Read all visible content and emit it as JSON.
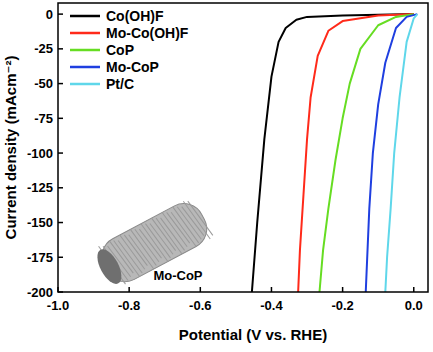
{
  "chart_data": {
    "type": "line",
    "x_label": "Potential (V vs. RHE)",
    "y_label": "Current density (mAcm⁻²)",
    "annotation": "Mo-CoP",
    "xlim": [
      -1.0,
      0.04
    ],
    "ylim": [
      -200,
      8
    ],
    "xticks": [
      {
        "value": -1.0,
        "label": "-1.0"
      },
      {
        "value": -0.8,
        "label": "-0.8"
      },
      {
        "value": -0.6,
        "label": "-0.6"
      },
      {
        "value": -0.4,
        "label": "-0.4"
      },
      {
        "value": -0.2,
        "label": "-0.2"
      },
      {
        "value": 0.0,
        "label": "0.0"
      }
    ],
    "yticks": [
      0,
      -25,
      -50,
      -75,
      -100,
      -125,
      -150,
      -175,
      -200
    ],
    "grid": false,
    "legend": "upper left",
    "series": [
      {
        "name": "Co(OH)F",
        "color": "#000000",
        "x": [
          0.0,
          -0.2,
          -0.3,
          -0.33,
          -0.36,
          -0.38,
          -0.4,
          -0.42,
          -0.44,
          -0.455
        ],
        "values": [
          0,
          -1,
          -2,
          -4,
          -10,
          -20,
          -45,
          -90,
          -150,
          -200
        ]
      },
      {
        "name": "Mo-Co(OH)F",
        "color": "#ff2a1a",
        "x": [
          0.0,
          -0.1,
          -0.2,
          -0.24,
          -0.27,
          -0.29,
          -0.3,
          -0.31,
          -0.32,
          -0.325
        ],
        "values": [
          0,
          -1,
          -5,
          -12,
          -30,
          -60,
          -90,
          -130,
          -170,
          -200
        ]
      },
      {
        "name": "CoP",
        "color": "#66dd22",
        "x": [
          0.0,
          -0.05,
          -0.1,
          -0.15,
          -0.18,
          -0.2,
          -0.22,
          -0.24,
          -0.255,
          -0.265
        ],
        "values": [
          0,
          -2,
          -8,
          -25,
          -50,
          -75,
          -105,
          -140,
          -170,
          -200
        ]
      },
      {
        "name": "Mo-CoP",
        "color": "#1f3fe0",
        "x": [
          0.01,
          -0.02,
          -0.05,
          -0.08,
          -0.1,
          -0.115,
          -0.125,
          -0.13,
          -0.135
        ],
        "values": [
          0,
          -2,
          -10,
          -35,
          -65,
          -100,
          -140,
          -170,
          -200
        ]
      },
      {
        "name": "Pt/C",
        "color": "#5fd7ea",
        "x": [
          0.01,
          0.0,
          -0.02,
          -0.04,
          -0.055,
          -0.065,
          -0.075,
          -0.08
        ],
        "values": [
          0,
          -3,
          -20,
          -60,
          -100,
          -140,
          -175,
          -200
        ]
      }
    ]
  }
}
